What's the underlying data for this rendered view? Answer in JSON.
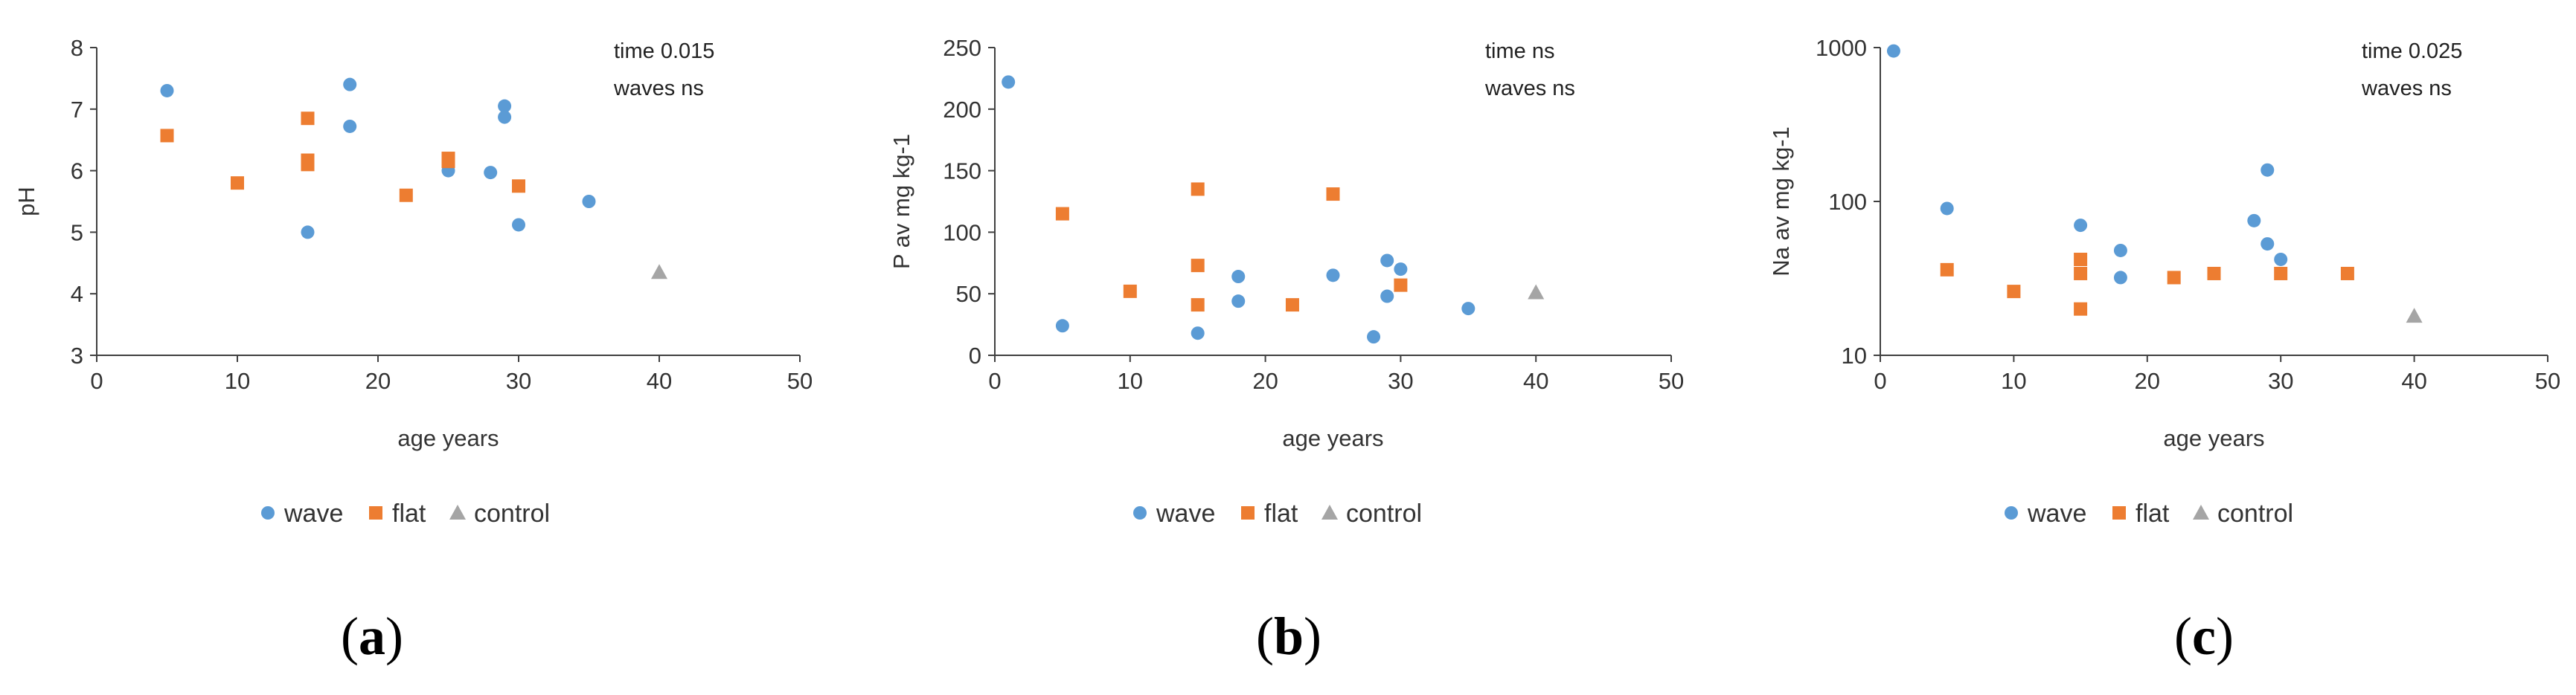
{
  "colors": {
    "wave": "#5B9BD5",
    "flat": "#ED7D31",
    "control": "#A5A5A5",
    "axis": "#404040"
  },
  "chart_data": [
    {
      "type": "scatter",
      "panel": "a",
      "xlabel": "age years",
      "ylabel": "pH",
      "xlim": [
        0,
        50
      ],
      "ylim": [
        3,
        8
      ],
      "yscale": "linear",
      "xticks": [
        "0",
        "10",
        "20",
        "30",
        "40",
        "50"
      ],
      "yticks": [
        "3",
        "4",
        "5",
        "6",
        "7",
        "8"
      ],
      "annotations": [
        "time 0.015",
        "waves ns"
      ],
      "legend": [
        "wave",
        "flat",
        "control"
      ],
      "series": [
        {
          "name": "wave",
          "marker": "circle",
          "points": [
            [
              5,
              7.3
            ],
            [
              15,
              5.0
            ],
            [
              18,
              7.4
            ],
            [
              18,
              6.72
            ],
            [
              25,
              6.0
            ],
            [
              28,
              5.97
            ],
            [
              29,
              7.05
            ],
            [
              29,
              6.87
            ],
            [
              30,
              5.12
            ],
            [
              35,
              5.5
            ]
          ]
        },
        {
          "name": "flat",
          "marker": "square",
          "points": [
            [
              5,
              6.57
            ],
            [
              10,
              5.8
            ],
            [
              15,
              6.85
            ],
            [
              15,
              6.17
            ],
            [
              15,
              6.1
            ],
            [
              22,
              5.6
            ],
            [
              25,
              6.2
            ],
            [
              25,
              6.15
            ],
            [
              30,
              5.75
            ]
          ]
        },
        {
          "name": "control",
          "marker": "triangle",
          "points": [
            [
              40,
              4.35
            ]
          ]
        }
      ]
    },
    {
      "type": "scatter",
      "panel": "b",
      "xlabel": "age years",
      "ylabel": "P av mg kg-1",
      "xlim": [
        0,
        50
      ],
      "ylim": [
        0,
        250
      ],
      "yscale": "linear",
      "xticks": [
        "0",
        "10",
        "20",
        "30",
        "40",
        "50"
      ],
      "yticks": [
        "0",
        "50",
        "100",
        "150",
        "200",
        "250"
      ],
      "annotations": [
        "time ns",
        "waves ns"
      ],
      "legend": [
        "wave",
        "flat",
        "control"
      ],
      "series": [
        {
          "name": "wave",
          "marker": "circle",
          "points": [
            [
              1,
              222
            ],
            [
              5,
              24
            ],
            [
              15,
              18
            ],
            [
              18,
              64
            ],
            [
              18,
              44
            ],
            [
              25,
              65
            ],
            [
              28,
              15
            ],
            [
              29,
              77
            ],
            [
              29,
              48
            ],
            [
              30,
              70
            ],
            [
              35,
              38
            ]
          ]
        },
        {
          "name": "flat",
          "marker": "square",
          "points": [
            [
              5,
              115
            ],
            [
              10,
              52
            ],
            [
              15,
              135
            ],
            [
              15,
              73
            ],
            [
              15,
              41
            ],
            [
              22,
              41
            ],
            [
              25,
              131
            ],
            [
              30,
              57
            ]
          ]
        },
        {
          "name": "control",
          "marker": "triangle",
          "points": [
            [
              40,
              51
            ]
          ]
        }
      ]
    },
    {
      "type": "scatter",
      "panel": "c",
      "xlabel": "age years",
      "ylabel": "Na av mg kg-1",
      "xlim": [
        0,
        50
      ],
      "ylim": [
        10,
        1000
      ],
      "yscale": "log",
      "xticks": [
        "0",
        "10",
        "20",
        "30",
        "40",
        "50"
      ],
      "yticks": [
        "10",
        "100",
        "1000"
      ],
      "annotations": [
        "time 0.025",
        "waves ns"
      ],
      "legend": [
        "wave",
        "flat",
        "control"
      ],
      "series": [
        {
          "name": "wave",
          "marker": "circle",
          "points": [
            [
              1,
              950
            ],
            [
              5,
              90
            ],
            [
              15,
              70
            ],
            [
              18,
              48
            ],
            [
              18,
              32
            ],
            [
              28,
              75
            ],
            [
              29,
              160
            ],
            [
              29,
              53
            ],
            [
              30,
              42
            ]
          ]
        },
        {
          "name": "flat",
          "marker": "square",
          "points": [
            [
              5,
              36
            ],
            [
              10,
              26
            ],
            [
              15,
              42
            ],
            [
              15,
              34
            ],
            [
              15,
              20
            ],
            [
              22,
              32
            ],
            [
              25,
              34
            ],
            [
              30,
              34
            ],
            [
              35,
              34
            ]
          ]
        },
        {
          "name": "control",
          "marker": "triangle",
          "points": [
            [
              40,
              18
            ]
          ]
        }
      ]
    }
  ],
  "panel_labels": [
    {
      "open": "(",
      "letter": "a",
      "close": ")"
    },
    {
      "open": "(",
      "letter": "b",
      "close": ")"
    },
    {
      "open": "(",
      "letter": "c",
      "close": ")"
    }
  ]
}
